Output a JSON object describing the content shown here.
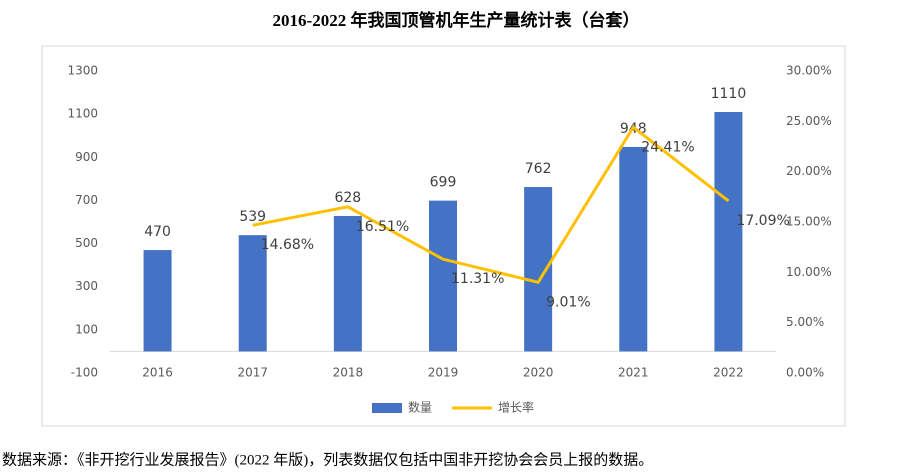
{
  "chart_data": {
    "type": "bar-line",
    "title": "2016-2022 年我国顶管机年生产量统计表（台套）",
    "categories": [
      "2016",
      "2017",
      "2018",
      "2019",
      "2020",
      "2021",
      "2022"
    ],
    "series": [
      {
        "name": "数量",
        "color": "#4472c4",
        "type": "bar",
        "values": [
          470,
          539,
          628,
          699,
          762,
          948,
          1110
        ]
      },
      {
        "name": "增长率",
        "color": "#ffc000",
        "type": "line",
        "axis": "y2",
        "values": [
          null,
          14.68,
          16.51,
          11.31,
          9.01,
          24.41,
          17.09
        ],
        "value_labels": [
          null,
          "14.68%",
          "16.51%",
          "11.31%",
          "9.01%",
          "24.41%",
          "17.09%"
        ]
      }
    ],
    "ylim": [
      -100,
      1300
    ],
    "yticks": [
      -100,
      100,
      300,
      500,
      700,
      900,
      1100,
      1300
    ],
    "y2lim": [
      0,
      30
    ],
    "y2ticks": [
      {
        "value": 0,
        "label": "0.00%"
      },
      {
        "value": 5,
        "label": "5.00%"
      },
      {
        "value": 10,
        "label": "10.00%"
      },
      {
        "value": 15,
        "label": "15.00%"
      },
      {
        "value": 20,
        "label": "20.00%"
      },
      {
        "value": 25,
        "label": "25.00%"
      },
      {
        "value": 30,
        "label": "30.00%"
      }
    ],
    "legend": "bottom",
    "source": "数据来源：《非开挖行业发展报告》(2022 年版)，列表数据仅包括中国非开挖协会会员上报的数据。"
  }
}
